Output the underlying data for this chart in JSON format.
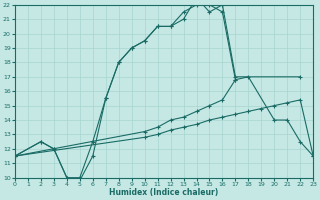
{
  "xlabel": "Humidex (Indice chaleur)",
  "bg_color": "#c5e8e5",
  "grid_color": "#a8d4d0",
  "line_color": "#1a6b65",
  "xlim": [
    0,
    23
  ],
  "ylim": [
    10,
    22
  ],
  "xticks": [
    0,
    1,
    2,
    3,
    4,
    5,
    6,
    7,
    8,
    9,
    10,
    11,
    12,
    13,
    14,
    15,
    16,
    17,
    18,
    19,
    20,
    21,
    22,
    23
  ],
  "yticks": [
    10,
    11,
    12,
    13,
    14,
    15,
    16,
    17,
    18,
    19,
    20,
    21,
    22
  ],
  "line1_x": [
    0,
    10,
    11,
    12,
    13,
    14,
    15,
    16,
    17,
    18,
    19,
    20,
    21,
    22,
    23
  ],
  "line1_y": [
    11.5,
    12.8,
    13.0,
    13.3,
    13.5,
    13.7,
    14.0,
    14.2,
    14.4,
    14.6,
    14.8,
    15.0,
    15.2,
    15.4,
    11.5
  ],
  "line2_x": [
    0,
    10,
    11,
    12,
    13,
    14,
    15,
    16,
    17,
    18,
    20,
    21,
    22,
    23
  ],
  "line2_y": [
    11.5,
    13.2,
    13.5,
    14.0,
    14.2,
    14.6,
    15.0,
    15.4,
    16.8,
    17.0,
    14.0,
    14.0,
    12.5,
    11.5
  ],
  "line3_x": [
    0,
    2,
    3,
    4,
    5,
    6,
    7,
    8,
    9,
    10,
    11,
    12,
    13,
    14,
    15,
    16,
    17,
    22
  ],
  "line3_y": [
    11.5,
    12.5,
    12.0,
    10.0,
    10.0,
    12.5,
    15.5,
    18.0,
    19.0,
    19.5,
    20.5,
    20.5,
    21.0,
    22.5,
    21.5,
    22.0,
    17.0,
    17.0
  ],
  "line4_x": [
    0,
    2,
    3,
    4,
    5,
    6,
    7,
    8,
    9,
    10,
    11,
    12,
    13,
    14,
    15,
    16,
    17
  ],
  "line4_y": [
    11.5,
    12.5,
    12.0,
    10.0,
    9.8,
    11.5,
    15.5,
    18.0,
    19.0,
    19.5,
    20.5,
    20.5,
    21.5,
    22.0,
    22.0,
    21.5,
    16.8
  ]
}
